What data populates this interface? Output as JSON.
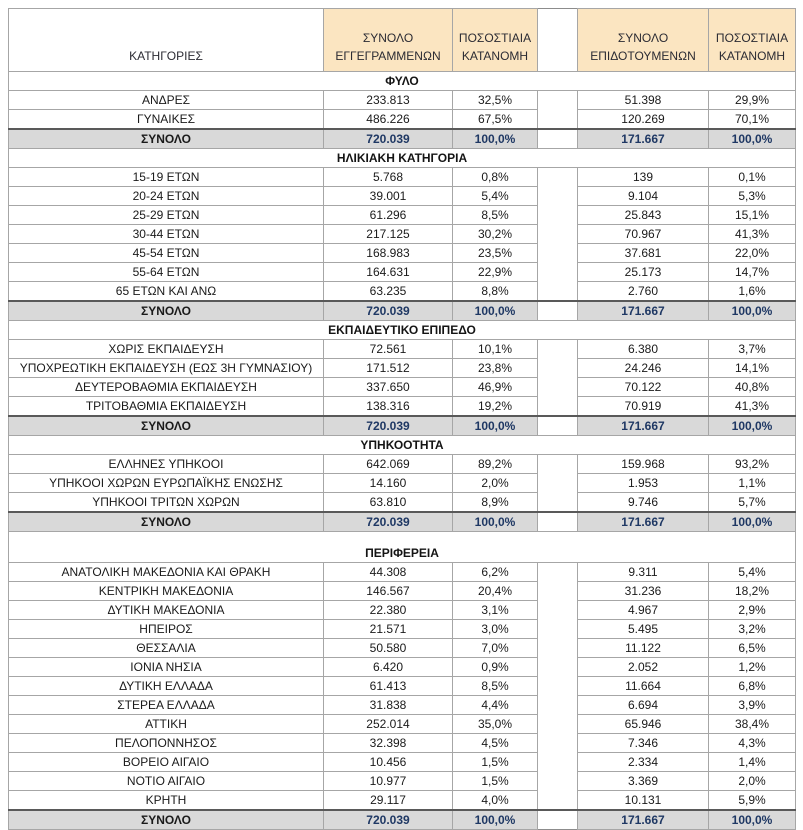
{
  "table_title": "",
  "columns": {
    "categories": "ΚΑΤΗΓΟΡΙΕΣ",
    "registered_total": "ΣΥΝΟΛΟ ΕΓΓΕΓΡΑΜΜΕΝΩΝ",
    "registered_pct": "ΠΟΣΟΣΤΙΑΙΑ ΚΑΤΑΝΟΜΗ",
    "subsidized_total": "ΣΥΝΟΛΟ ΕΠΙΔΟΤΟΥΜΕΝΩΝ",
    "subsidized_pct": "ΠΟΣΟΣΤΙΑΙΑ ΚΑΤΑΝΟΜΗ"
  },
  "total_label": "ΣΥΝΟΛΟ",
  "grand_totals": {
    "registered": "720.039",
    "registered_pct": "100,0%",
    "subsidized": "171.667",
    "subsidized_pct": "100,0%"
  },
  "sections": [
    {
      "title": "ΦΥΛΟ",
      "spacer_before": false,
      "rows": [
        {
          "label": "ΑΝΔΡΕΣ",
          "registered": "233.813",
          "registered_pct": "32,5%",
          "subsidized": "51.398",
          "subsidized_pct": "29,9%"
        },
        {
          "label": "ΓΥΝΑΙΚΕΣ",
          "registered": "486.226",
          "registered_pct": "67,5%",
          "subsidized": "120.269",
          "subsidized_pct": "70,1%"
        }
      ]
    },
    {
      "title": "ΗΛΙΚΙΑΚΗ ΚΑΤΗΓΟΡΙΑ",
      "spacer_before": false,
      "rows": [
        {
          "label": "15-19 ΕΤΩΝ",
          "registered": "5.768",
          "registered_pct": "0,8%",
          "subsidized": "139",
          "subsidized_pct": "0,1%"
        },
        {
          "label": "20-24 ΕΤΩΝ",
          "registered": "39.001",
          "registered_pct": "5,4%",
          "subsidized": "9.104",
          "subsidized_pct": "5,3%"
        },
        {
          "label": "25-29 ΕΤΩΝ",
          "registered": "61.296",
          "registered_pct": "8,5%",
          "subsidized": "25.843",
          "subsidized_pct": "15,1%"
        },
        {
          "label": "30-44 ΕΤΩΝ",
          "registered": "217.125",
          "registered_pct": "30,2%",
          "subsidized": "70.967",
          "subsidized_pct": "41,3%"
        },
        {
          "label": "45-54 ΕΤΩΝ",
          "registered": "168.983",
          "registered_pct": "23,5%",
          "subsidized": "37.681",
          "subsidized_pct": "22,0%"
        },
        {
          "label": "55-64 ΕΤΩΝ",
          "registered": "164.631",
          "registered_pct": "22,9%",
          "subsidized": "25.173",
          "subsidized_pct": "14,7%"
        },
        {
          "label": "65 ΕΤΩΝ ΚΑΙ ΑΝΩ",
          "registered": "63.235",
          "registered_pct": "8,8%",
          "subsidized": "2.760",
          "subsidized_pct": "1,6%"
        }
      ]
    },
    {
      "title": "ΕΚΠΑΙΔΕΥΤΙΚΟ ΕΠΙΠΕΔΟ",
      "spacer_before": false,
      "rows": [
        {
          "label": "ΧΩΡΙΣ ΕΚΠΑΙΔΕΥΣΗ",
          "registered": "72.561",
          "registered_pct": "10,1%",
          "subsidized": "6.380",
          "subsidized_pct": "3,7%"
        },
        {
          "label": "ΥΠΟΧΡΕΩΤΙΚΗ ΕΚΠΑΙΔΕΥΣΗ (ΕΩΣ 3Η ΓΥΜΝΑΣΙΟΥ)",
          "registered": "171.512",
          "registered_pct": "23,8%",
          "subsidized": "24.246",
          "subsidized_pct": "14,1%"
        },
        {
          "label": "ΔΕΥΤΕΡΟΒΑΘΜΙΑ ΕΚΠΑΙΔΕΥΣΗ",
          "registered": "337.650",
          "registered_pct": "46,9%",
          "subsidized": "70.122",
          "subsidized_pct": "40,8%"
        },
        {
          "label": "ΤΡΙΤΟΒΑΘΜΙΑ ΕΚΠΑΙΔΕΥΣΗ",
          "registered": "138.316",
          "registered_pct": "19,2%",
          "subsidized": "70.919",
          "subsidized_pct": "41,3%"
        }
      ]
    },
    {
      "title": "ΥΠΗΚΟΟΤΗΤΑ",
      "spacer_before": false,
      "rows": [
        {
          "label": "ΕΛΛΗΝΕΣ ΥΠΗΚΟΟΙ",
          "registered": "642.069",
          "registered_pct": "89,2%",
          "subsidized": "159.968",
          "subsidized_pct": "93,2%"
        },
        {
          "label": "ΥΠΗΚΟΟΙ ΧΩΡΩΝ ΕΥΡΩΠΑΪΚΗΣ ΕΝΩΣΗΣ",
          "registered": "14.160",
          "registered_pct": "2,0%",
          "subsidized": "1.953",
          "subsidized_pct": "1,1%"
        },
        {
          "label": "ΥΠΗΚΟΟΙ ΤΡΙΤΩΝ ΧΩΡΩΝ",
          "registered": "63.810",
          "registered_pct": "8,9%",
          "subsidized": "9.746",
          "subsidized_pct": "5,7%"
        }
      ]
    },
    {
      "title": "ΠΕΡΙΦΕΡΕΙΑ",
      "spacer_before": true,
      "rows": [
        {
          "label": "ΑΝΑΤΟΛΙΚΗ ΜΑΚΕΔΟΝΙΑ ΚΑΙ ΘΡΑΚΗ",
          "registered": "44.308",
          "registered_pct": "6,2%",
          "subsidized": "9.311",
          "subsidized_pct": "5,4%"
        },
        {
          "label": "ΚΕΝΤΡΙΚΗ ΜΑΚΕΔΟΝΙΑ",
          "registered": "146.567",
          "registered_pct": "20,4%",
          "subsidized": "31.236",
          "subsidized_pct": "18,2%"
        },
        {
          "label": "ΔΥΤΙΚΗ ΜΑΚΕΔΟΝΙΑ",
          "registered": "22.380",
          "registered_pct": "3,1%",
          "subsidized": "4.967",
          "subsidized_pct": "2,9%"
        },
        {
          "label": "ΗΠΕΙΡΟΣ",
          "registered": "21.571",
          "registered_pct": "3,0%",
          "subsidized": "5.495",
          "subsidized_pct": "3,2%"
        },
        {
          "label": "ΘΕΣΣΑΛΙΑ",
          "registered": "50.580",
          "registered_pct": "7,0%",
          "subsidized": "11.122",
          "subsidized_pct": "6,5%"
        },
        {
          "label": "ΙΟΝΙΑ ΝΗΣΙΑ",
          "registered": "6.420",
          "registered_pct": "0,9%",
          "subsidized": "2.052",
          "subsidized_pct": "1,2%"
        },
        {
          "label": "ΔΥΤΙΚΗ ΕΛΛΑΔΑ",
          "registered": "61.413",
          "registered_pct": "8,5%",
          "subsidized": "11.664",
          "subsidized_pct": "6,8%"
        },
        {
          "label": "ΣΤΕΡΕΑ ΕΛΛΑΔΑ",
          "registered": "31.838",
          "registered_pct": "4,4%",
          "subsidized": "6.694",
          "subsidized_pct": "3,9%"
        },
        {
          "label": "ΑΤΤΙΚΗ",
          "registered": "252.014",
          "registered_pct": "35,0%",
          "subsidized": "65.946",
          "subsidized_pct": "38,4%"
        },
        {
          "label": "ΠΕΛΟΠΟΝΝΗΣΟΣ",
          "registered": "32.398",
          "registered_pct": "4,5%",
          "subsidized": "7.346",
          "subsidized_pct": "4,3%"
        },
        {
          "label": "ΒΟΡΕΙΟ ΑΙΓΑΙΟ",
          "registered": "10.456",
          "registered_pct": "1,5%",
          "subsidized": "2.334",
          "subsidized_pct": "1,4%"
        },
        {
          "label": "ΝΟΤΙΟ ΑΙΓΑΙΟ",
          "registered": "10.977",
          "registered_pct": "1,5%",
          "subsidized": "3.369",
          "subsidized_pct": "2,0%"
        },
        {
          "label": "ΚΡΗΤΗ",
          "registered": "29.117",
          "registered_pct": "4,0%",
          "subsidized": "10.131",
          "subsidized_pct": "5,9%"
        }
      ]
    }
  ],
  "colors": {
    "header_fill": "#fbe5c1",
    "total_row_fill": "#d9d9d9",
    "grid_line": "#a6a6a6",
    "number_text": "#1f3864",
    "label_text": "#1a1a1a"
  }
}
